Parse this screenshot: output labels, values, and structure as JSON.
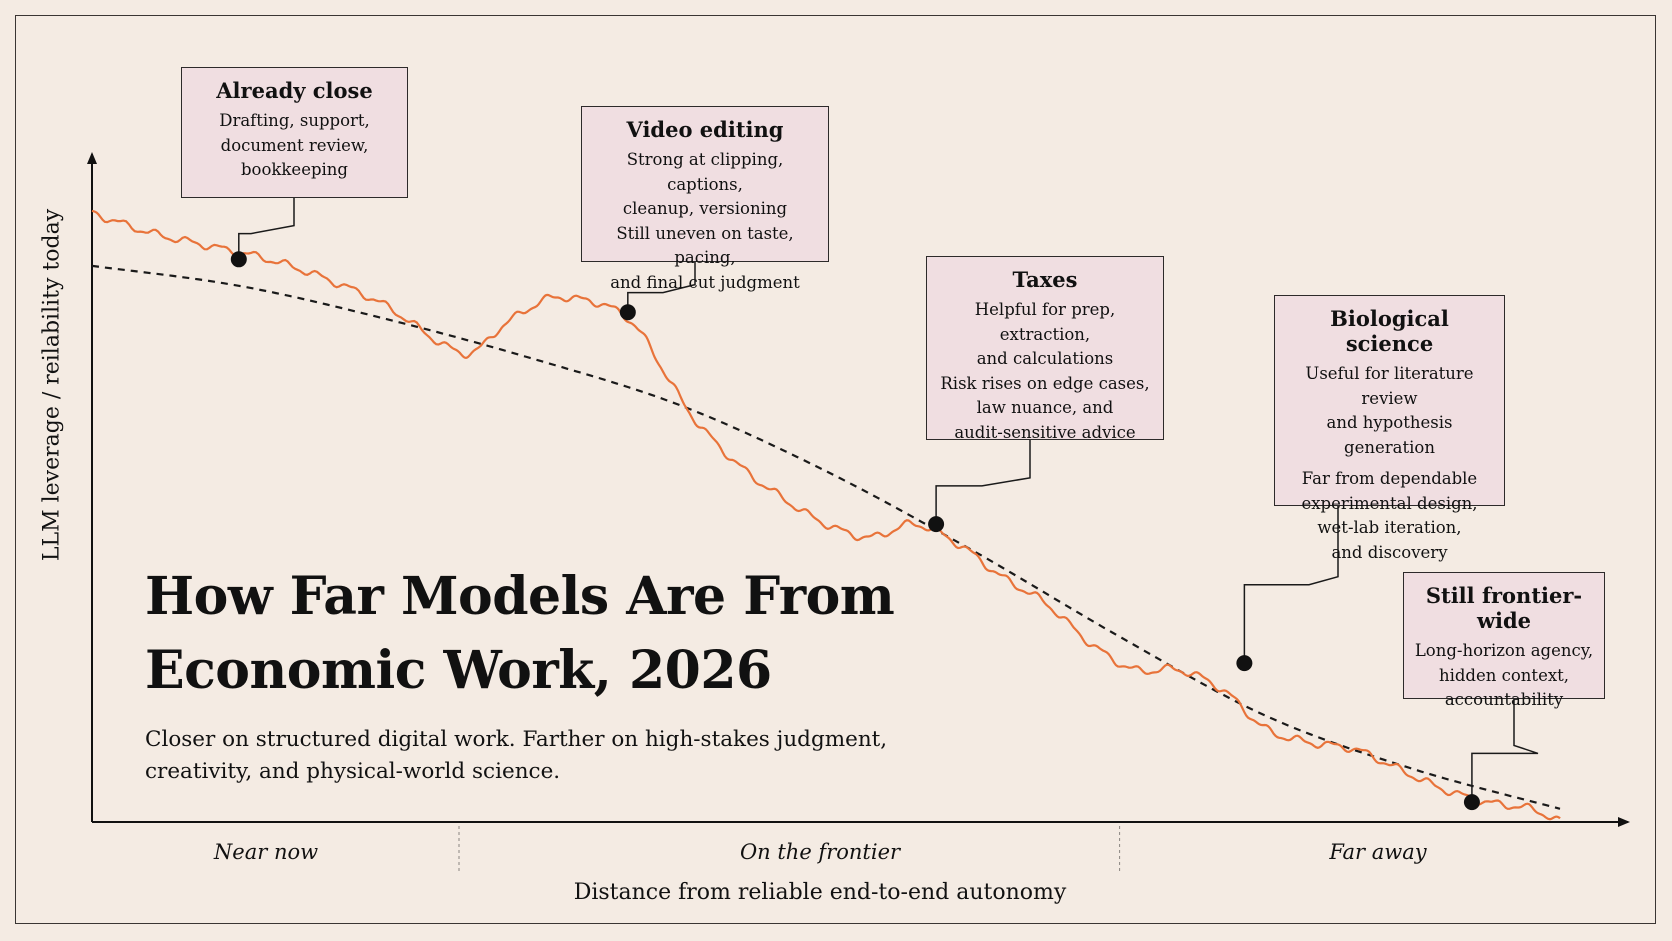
{
  "chart_data": {
    "type": "line",
    "title": "How Far Models Are From Economic Work, 2026",
    "subtitle": "Closer on structured digital work. Farther on high-stakes judgment, creativity, and physical-world science.",
    "xlabel": "Distance from reliable end-to-end autonomy",
    "ylabel": "LLM leverage / reilability today",
    "xlim": [
      0,
      100
    ],
    "ylim": [
      0,
      100
    ],
    "grid": false,
    "zones": [
      "Near now",
      "On the frontier",
      "Far away"
    ],
    "zone_bounds": [
      25,
      70
    ],
    "series": [
      {
        "style": "solid-orange",
        "x": [
          0,
          4,
          8,
          12,
          16,
          20,
          24,
          26,
          28,
          31,
          33,
          35,
          37,
          39,
          41,
          44,
          47,
          50,
          53,
          56,
          59,
          62,
          65,
          68,
          71,
          74,
          77,
          80,
          83,
          86,
          89,
          92,
          95,
          98,
          100
        ],
        "y": [
          92,
          89,
          87,
          85,
          82,
          78,
          72,
          71,
          75,
          79,
          79,
          78,
          75,
          68,
          61,
          54,
          49,
          45,
          43,
          45,
          42,
          37,
          33,
          27,
          23,
          23,
          20,
          14,
          12,
          11,
          8,
          5,
          3,
          2,
          0
        ]
      },
      {
        "style": "dashed-black",
        "x": [
          0,
          10,
          20,
          30,
          40,
          50,
          60,
          70,
          80,
          90,
          100
        ],
        "y": [
          84,
          81,
          76,
          70,
          63,
          53,
          41,
          28,
          16,
          8,
          2
        ]
      }
    ],
    "annotations": [
      {
        "title": "Already close",
        "lines": [
          "Drafting, support,",
          "document review,",
          "bookkeeping"
        ],
        "x": 10,
        "y": 85
      },
      {
        "title": "Video editing",
        "lines": [
          "Strong at clipping, captions,",
          "cleanup, versioning",
          "Still uneven on taste, pacing,",
          "and final cut judgment"
        ],
        "x": 36.5,
        "y": 77
      },
      {
        "title": "Taxes",
        "lines": [
          "Helpful for prep, extraction,",
          "and calculations",
          "Risk rises on edge cases,",
          "law nuance, and",
          "audit-sensitive advice"
        ],
        "x": 57.5,
        "y": 45
      },
      {
        "title": "Biological science",
        "lines": [
          "Useful for literature review",
          "and hypothesis generation",
          "Far from dependable",
          "experimental design,",
          "wet-lab iteration,",
          "and discovery"
        ],
        "x": 78.5,
        "y": 24
      },
      {
        "title": "Still frontier-wide",
        "lines": [
          "Long-horizon agency,",
          "hidden context,",
          "accountability"
        ],
        "x": 94,
        "y": 3
      }
    ],
    "colors": {
      "line": "#e8733a",
      "trend": "#1a1a1a",
      "callout_bg": "#f0dee1",
      "background": "#f4ebe3"
    }
  }
}
